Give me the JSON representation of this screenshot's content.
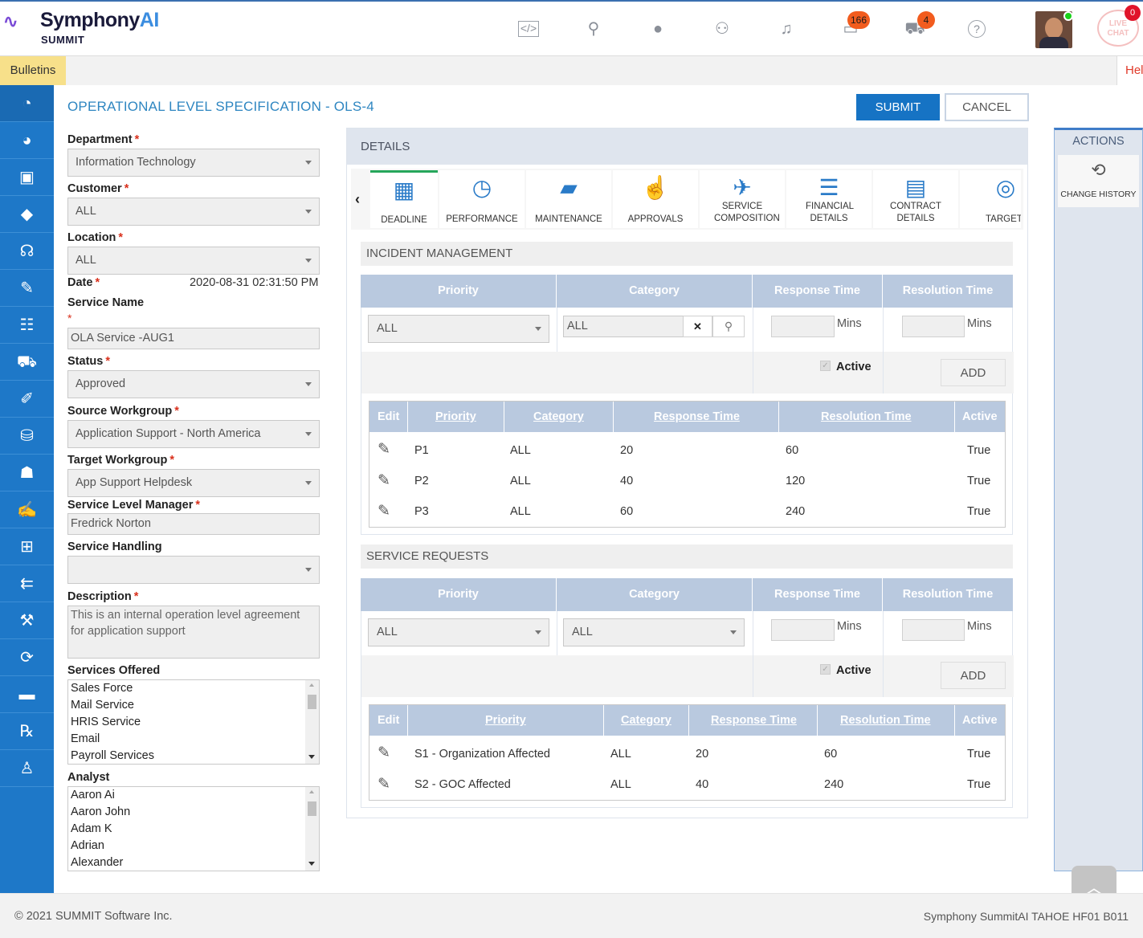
{
  "header": {
    "logo_main": "Symphony",
    "logo_ai": "AI",
    "logo_sub": "SUMMIT",
    "icons": [
      "code-icon",
      "search-icon",
      "globe-icon",
      "users-icon",
      "bell-icon",
      "chat-icon",
      "cart-icon",
      "help-icon"
    ],
    "chat_badge": "166",
    "cart_badge": "4",
    "livechat_label": "LIVE CHAT",
    "livechat_badge": "0"
  },
  "bulletin": {
    "label": "Bulletins",
    "help": "Hel"
  },
  "sidebar": {
    "items": [
      "dashboard-icon",
      "pie-chart-icon",
      "monitor-icon",
      "ticket-icon",
      "support-agent-icon",
      "edit-document-icon",
      "checklist-icon",
      "cart-icon",
      "document-edit-icon",
      "database-icon",
      "user-desk-icon",
      "notepad-icon",
      "workflow-icon",
      "hierarchy-icon",
      "hammer-icon",
      "change-icon",
      "briefcase-icon",
      "report-icon",
      "person-icon"
    ]
  },
  "page": {
    "title": "OPERATIONAL LEVEL SPECIFICATION - OLS-4",
    "submit": "SUBMIT",
    "cancel": "CANCEL"
  },
  "form": {
    "department_label": "Department",
    "department_value": "Information Technology",
    "customer_label": "Customer",
    "customer_value": "ALL",
    "location_label": "Location",
    "location_value": "ALL",
    "date_label": "Date",
    "date_value": "2020-08-31 02:31:50 PM",
    "service_name_label": "Service Name",
    "service_name_value": "OLA Service -AUG1",
    "status_label": "Status",
    "status_value": "Approved",
    "source_wg_label": "Source Workgroup",
    "source_wg_value": "Application Support - North America",
    "target_wg_label": "Target Workgroup",
    "target_wg_value": "App Support Helpdesk",
    "slm_label": "Service Level Manager",
    "slm_value": "Fredrick Norton",
    "handling_label": "Service Handling",
    "handling_value": "",
    "description_label": "Description",
    "description_value": "This is an internal operation level agreement for application support",
    "services_label": "Services Offered",
    "services": [
      "Sales Force",
      "Mail Service",
      "HRIS Service",
      "Email",
      "Payroll Services"
    ],
    "analyst_label": "Analyst",
    "analysts": [
      "Aaron Ai",
      "Aaron John",
      "Adam K",
      "Adrian",
      "Alexander"
    ],
    "required_mark": "*"
  },
  "details": {
    "header": "DETAILS",
    "tabs": [
      {
        "label": "DEADLINE",
        "icon": "calendar-clock-icon"
      },
      {
        "label": "PERFORMANCE",
        "icon": "gauge-icon"
      },
      {
        "label": "MAINTENANCE",
        "icon": "toolbox-icon"
      },
      {
        "label": "APPROVALS",
        "icon": "thumbs-up-icon"
      },
      {
        "label": "SERVICE COMPOSITION",
        "icon": "satellite-icon"
      },
      {
        "label": "FINANCIAL DETAILS",
        "icon": "clipboard-icon"
      },
      {
        "label": "CONTRACT DETAILS",
        "icon": "contract-icon"
      },
      {
        "label": "TARGET",
        "icon": "target-icon"
      }
    ]
  },
  "incident": {
    "title": "INCIDENT MANAGEMENT",
    "headers": [
      "Priority",
      "Category",
      "Response Time",
      "Resolution Time"
    ],
    "priority_value": "ALL",
    "category_value": "ALL",
    "mins": "Mins",
    "active_label": "Active",
    "add_label": "ADD",
    "table_headers": [
      "Edit",
      "Priority",
      "Category",
      "Response Time",
      "Resolution Time",
      "Active"
    ],
    "rows": [
      {
        "priority": "P1",
        "category": "ALL",
        "response": "20",
        "resolution": "60",
        "active": "True"
      },
      {
        "priority": "P2",
        "category": "ALL",
        "response": "40",
        "resolution": "120",
        "active": "True"
      },
      {
        "priority": "P3",
        "category": "ALL",
        "response": "60",
        "resolution": "240",
        "active": "True"
      }
    ]
  },
  "service_requests": {
    "title": "SERVICE REQUESTS",
    "headers": [
      "Priority",
      "Category",
      "Response Time",
      "Resolution Time"
    ],
    "priority_value": "ALL",
    "category_value": "ALL",
    "mins": "Mins",
    "active_label": "Active",
    "add_label": "ADD",
    "table_headers": [
      "Edit",
      "Priority",
      "Category",
      "Response Time",
      "Resolution Time",
      "Active"
    ],
    "rows": [
      {
        "priority": "S1 - Organization Affected",
        "category": "ALL",
        "response": "20",
        "resolution": "60",
        "active": "True"
      },
      {
        "priority": "S2 - GOC Affected",
        "category": "ALL",
        "response": "40",
        "resolution": "240",
        "active": "True"
      }
    ]
  },
  "actions": {
    "title": "ACTIONS",
    "change_history": "CHANGE HISTORY"
  },
  "footer": {
    "copyright": "© 2021 SUMMIT Software Inc.",
    "version": "Symphony SummitAI TAHOE HF01 B011"
  }
}
